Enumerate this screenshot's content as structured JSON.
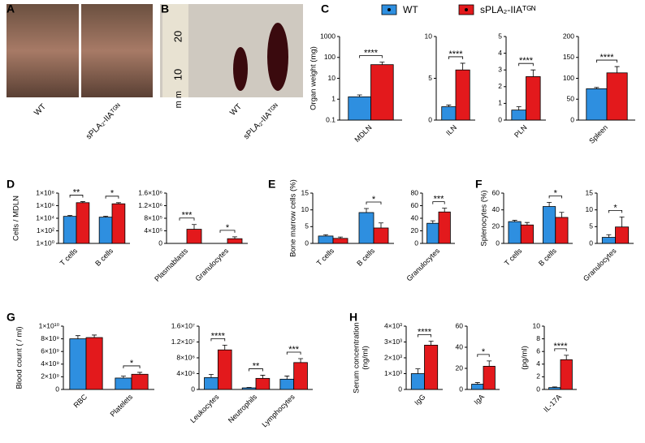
{
  "panel_letters": [
    "A",
    "B",
    "C",
    "D",
    "E",
    "F",
    "G",
    "H"
  ],
  "photos": {
    "A": {
      "labels": [
        "WT",
        "sPLA₂-IIAᵀᴳᴺ"
      ]
    },
    "B": {
      "ruler": [
        "20",
        "10",
        "m m"
      ],
      "labels": [
        "WT",
        "sPLA₂-IIAᵀᴳᴺ"
      ]
    }
  },
  "chart_data": [
    {
      "type": "bar",
      "ylabel": "Organ weight (mg)",
      "log_scale": true,
      "categories": [
        "MDLN"
      ],
      "series": [
        {
          "name": "WT",
          "color": "#2e8fe0",
          "values": [
            1.3
          ],
          "errors": [
            0.3
          ]
        },
        {
          "name": "sPLA₂-IIAᵀᴳᴺ",
          "color": "#e3191c",
          "values": [
            45
          ],
          "errors": [
            15
          ]
        }
      ],
      "ylim": [
        0.1,
        1000
      ],
      "yticks": [
        0.1,
        1,
        10,
        100,
        1000
      ],
      "annotations": [
        {
          "category": "MDLN",
          "text": "****"
        }
      ]
    },
    {
      "type": "bar",
      "categories": [
        "ILN"
      ],
      "series": [
        {
          "name": "WT",
          "color": "#2e8fe0",
          "values": [
            1.6
          ],
          "errors": [
            0.2
          ]
        },
        {
          "name": "sPLA₂-IIAᵀᴳᴺ",
          "color": "#e3191c",
          "values": [
            6.0
          ],
          "errors": [
            0.8
          ]
        }
      ],
      "ylim": [
        0,
        10
      ],
      "yticks": [
        0,
        5,
        10
      ],
      "annotations": [
        {
          "category": "ILN",
          "text": "****"
        }
      ]
    },
    {
      "type": "bar",
      "categories": [
        "PLN"
      ],
      "series": [
        {
          "name": "WT",
          "color": "#2e8fe0",
          "values": [
            0.6
          ],
          "errors": [
            0.2
          ]
        },
        {
          "name": "sPLA₂-IIAᵀᴳᴺ",
          "color": "#e3191c",
          "values": [
            2.6
          ],
          "errors": [
            0.4
          ]
        }
      ],
      "ylim": [
        0,
        5
      ],
      "yticks": [
        0,
        1,
        2,
        3,
        4,
        5
      ],
      "annotations": [
        {
          "category": "PLN",
          "text": "****"
        }
      ]
    },
    {
      "type": "bar",
      "categories": [
        "Spleen"
      ],
      "series": [
        {
          "name": "WT",
          "color": "#2e8fe0",
          "values": [
            75
          ],
          "errors": [
            3
          ]
        },
        {
          "name": "sPLA₂-IIAᵀᴳᴺ",
          "color": "#e3191c",
          "values": [
            113
          ],
          "errors": [
            15
          ]
        }
      ],
      "ylim": [
        0,
        200
      ],
      "yticks": [
        0,
        50,
        100,
        150,
        200
      ],
      "annotations": [
        {
          "category": "Spleen",
          "text": "****"
        }
      ]
    },
    {
      "type": "bar",
      "ylabel": "Cells / MDLN",
      "log_scale": true,
      "categories": [
        "T cells",
        "B cells"
      ],
      "series": [
        {
          "name": "WT",
          "color": "#2e8fe0",
          "values": [
            20000,
            15000
          ],
          "errors": [
            8000,
            6000
          ]
        },
        {
          "name": "sPLA₂-IIAᵀᴳᴺ",
          "color": "#e3191c",
          "values": [
            3000000,
            2000000
          ],
          "errors": [
            1500000,
            1000000
          ]
        }
      ],
      "ylim": [
        1,
        100000000
      ],
      "yticks": [
        {
          "value": 1,
          "label": "1×10⁰"
        },
        {
          "value": 100,
          "label": "1×10²"
        },
        {
          "value": 10000,
          "label": "1×10⁴"
        },
        {
          "value": 1000000,
          "label": "1×10⁶"
        },
        {
          "value": 100000000,
          "label": "1×10⁸"
        }
      ],
      "annotations": [
        {
          "category": "T cells",
          "text": "**"
        },
        {
          "category": "B cells",
          "text": "*"
        }
      ]
    },
    {
      "type": "bar",
      "categories": [
        "Plasmablasts",
        "Granulocytes"
      ],
      "series": [
        {
          "name": "WT",
          "color": "#2e8fe0",
          "values": [
            0,
            0
          ],
          "errors": [
            0,
            0
          ]
        },
        {
          "name": "sPLA₂-IIAᵀᴳᴺ",
          "color": "#e3191c",
          "values": [
            450000,
            150000
          ],
          "errors": [
            150000,
            60000
          ]
        }
      ],
      "ylim": [
        0,
        1600000
      ],
      "yticks": [
        0,
        {
          "value": 400000,
          "label": "4×10⁵"
        },
        {
          "value": 800000,
          "label": "8×10⁵"
        },
        {
          "value": 1200000,
          "label": "1.2×10⁶"
        },
        {
          "value": 1600000,
          "label": "1.6×10⁶"
        }
      ],
      "annotations": [
        {
          "category": "Plasmablasts",
          "text": "***"
        },
        {
          "category": "Granulocytes",
          "text": "*"
        }
      ]
    },
    {
      "type": "bar",
      "ylabel": "Bone marrow cells (%)",
      "categories": [
        "T cells",
        "B cells"
      ],
      "series": [
        {
          "name": "WT",
          "color": "#2e8fe0",
          "values": [
            2.2,
            9.2
          ],
          "errors": [
            0.4,
            1.2
          ]
        },
        {
          "name": "sPLA₂-IIAᵀᴳᴺ",
          "color": "#e3191c",
          "values": [
            1.5,
            4.6
          ],
          "errors": [
            0.4,
            1.5
          ]
        }
      ],
      "ylim": [
        0,
        15
      ],
      "yticks": [
        0,
        5,
        10,
        15
      ],
      "annotations": [
        {
          "category": "B cells",
          "text": "*"
        }
      ]
    },
    {
      "type": "bar",
      "categories": [
        "Granulocytes"
      ],
      "series": [
        {
          "name": "WT",
          "color": "#2e8fe0",
          "values": [
            32
          ],
          "errors": [
            4
          ]
        },
        {
          "name": "sPLA₂-IIAᵀᴳᴺ",
          "color": "#e3191c",
          "values": [
            50
          ],
          "errors": [
            6
          ]
        }
      ],
      "ylim": [
        0,
        80
      ],
      "yticks": [
        0,
        20,
        40,
        60,
        80
      ],
      "annotations": [
        {
          "category": "Granulocytes",
          "text": "***"
        }
      ]
    },
    {
      "type": "bar",
      "ylabel": "Splenocytes (%)",
      "categories": [
        "T cells",
        "B cells"
      ],
      "series": [
        {
          "name": "WT",
          "color": "#2e8fe0",
          "values": [
            26,
            44
          ],
          "errors": [
            1.5,
            5
          ]
        },
        {
          "name": "sPLA₂-IIAᵀᴳᴺ",
          "color": "#e3191c",
          "values": [
            22,
            31
          ],
          "errors": [
            3,
            6
          ]
        }
      ],
      "ylim": [
        0,
        60
      ],
      "yticks": [
        0,
        20,
        40,
        60
      ],
      "annotations": [
        {
          "category": "B cells",
          "text": "*"
        }
      ]
    },
    {
      "type": "bar",
      "categories": [
        "Granulocytes"
      ],
      "series": [
        {
          "name": "WT",
          "color": "#2e8fe0",
          "values": [
            1.8
          ],
          "errors": [
            0.8
          ]
        },
        {
          "name": "sPLA₂-IIAᵀᴳᴺ",
          "color": "#e3191c",
          "values": [
            4.9
          ],
          "errors": [
            3
          ]
        }
      ],
      "ylim": [
        0,
        15
      ],
      "yticks": [
        0,
        5,
        10,
        15
      ],
      "annotations": [
        {
          "category": "Granulocytes",
          "text": "*"
        }
      ]
    },
    {
      "type": "bar",
      "ylabel": "Blood count ( / ml)",
      "categories": [
        "RBC",
        "Platelets"
      ],
      "series": [
        {
          "name": "WT",
          "color": "#2e8fe0",
          "values": [
            8000000000,
            1800000000
          ],
          "errors": [
            500000000,
            300000000
          ]
        },
        {
          "name": "sPLA₂-IIAᵀᴳᴺ",
          "color": "#e3191c",
          "values": [
            8200000000,
            2400000000
          ],
          "errors": [
            400000000,
            300000000
          ]
        }
      ],
      "ylim": [
        0,
        10000000000
      ],
      "yticks": [
        0,
        {
          "value": 2000000000,
          "label": "2×10⁹"
        },
        {
          "value": 4000000000,
          "label": "4×10⁹"
        },
        {
          "value": 6000000000,
          "label": "6×10⁹"
        },
        {
          "value": 8000000000,
          "label": "8×10⁹"
        },
        {
          "value": 10000000000,
          "label": "1×10¹⁰"
        }
      ],
      "annotations": [
        {
          "category": "Platelets",
          "text": "*"
        }
      ]
    },
    {
      "type": "bar",
      "categories": [
        "Leukocytes",
        "Neutrophils",
        "Lymphocytes"
      ],
      "series": [
        {
          "name": "WT",
          "color": "#2e8fe0",
          "values": [
            3000000,
            400000,
            2600000
          ],
          "errors": [
            800000,
            100000,
            800000
          ]
        },
        {
          "name": "sPLA₂-IIAᵀᴳᴺ",
          "color": "#e3191c",
          "values": [
            10000000,
            2800000,
            6800000
          ],
          "errors": [
            1200000,
            800000,
            1000000
          ]
        }
      ],
      "ylim": [
        0,
        16000000
      ],
      "yticks": [
        0,
        {
          "value": 4000000,
          "label": "4×10⁶"
        },
        {
          "value": 8000000,
          "label": "8×10⁶"
        },
        {
          "value": 12000000,
          "label": "1.2×10⁷"
        },
        {
          "value": 16000000,
          "label": "1.6×10⁷"
        }
      ],
      "annotations": [
        {
          "category": "Leukocytes",
          "text": "****"
        },
        {
          "category": "Neutrophils",
          "text": "**"
        },
        {
          "category": "Lymphocytes",
          "text": "***"
        }
      ]
    },
    {
      "type": "bar",
      "ylabel": [
        "Serum concentration",
        "(ng/ml)"
      ],
      "categories": [
        "IgG"
      ],
      "series": [
        {
          "name": "WT",
          "color": "#2e8fe0",
          "values": [
            1000
          ],
          "errors": [
            300
          ]
        },
        {
          "name": "sPLA₂-IIAᵀᴳᴺ",
          "color": "#e3191c",
          "values": [
            2800
          ],
          "errors": [
            250
          ]
        }
      ],
      "ylim": [
        0,
        4000
      ],
      "yticks": [
        0,
        {
          "value": 1000,
          "label": "1×10³"
        },
        {
          "value": 2000,
          "label": "2×10³"
        },
        {
          "value": 3000,
          "label": "3×10³"
        },
        {
          "value": 4000,
          "label": "4×10³"
        }
      ],
      "annotations": [
        {
          "category": "IgG",
          "text": "****"
        }
      ]
    },
    {
      "type": "bar",
      "categories": [
        "IgA"
      ],
      "series": [
        {
          "name": "WT",
          "color": "#2e8fe0",
          "values": [
            5
          ],
          "errors": [
            1.5
          ]
        },
        {
          "name": "sPLA₂-IIAᵀᴳᴺ",
          "color": "#e3191c",
          "values": [
            22
          ],
          "errors": [
            5
          ]
        }
      ],
      "ylim": [
        0,
        60
      ],
      "yticks": [
        0,
        20,
        40,
        60
      ],
      "annotations": [
        {
          "category": "IgA",
          "text": "*"
        }
      ]
    },
    {
      "type": "bar",
      "ylabel": "(pg/ml)",
      "categories": [
        "IL-17A"
      ],
      "series": [
        {
          "name": "WT",
          "color": "#2e8fe0",
          "values": [
            0.3
          ],
          "errors": [
            0.1
          ]
        },
        {
          "name": "sPLA₂-IIAᵀᴳᴺ",
          "color": "#e3191c",
          "values": [
            4.7
          ],
          "errors": [
            0.7
          ]
        }
      ],
      "ylim": [
        0,
        10
      ],
      "yticks": [
        0,
        2,
        4,
        6,
        8,
        10
      ],
      "annotations": [
        {
          "category": "IL-17A",
          "text": "****"
        }
      ]
    }
  ]
}
